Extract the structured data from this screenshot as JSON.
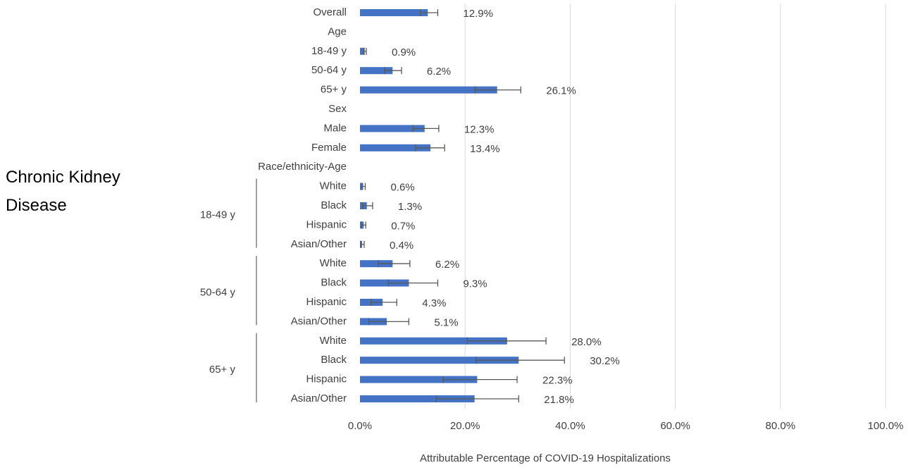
{
  "chart_data": {
    "type": "bar",
    "orientation": "horizontal",
    "title": "Chronic Kidney Disease",
    "x_label": "Attributable Percentage of COVID-19 Hospitalizations",
    "categories": [
      "Overall",
      "Age",
      "18-49 y",
      "50-64 y",
      "65+ y",
      "Sex",
      "Male",
      "Female",
      "Race/ethnicity-Age",
      "White",
      "Black",
      "Hispanic",
      "Asian/Other",
      "White",
      "Black",
      "Hispanic",
      "Asian/Other",
      "White",
      "Black",
      "Hispanic",
      "Asian/Other"
    ],
    "groups": [
      "18-49 y",
      "50-64 y",
      "65+ y"
    ],
    "series": [
      {
        "color": "#4472c4",
        "values": [
          12.9,
          null,
          0.9,
          6.2,
          26.1,
          null,
          12.3,
          13.4,
          null,
          0.6,
          1.3,
          0.7,
          0.4,
          6.2,
          9.3,
          4.3,
          5.1,
          28.0,
          30.2,
          22.3,
          21.8
        ],
        "value_labels": [
          "12.9%",
          null,
          "0.9%",
          "6.2%",
          "26.1%",
          null,
          "12.3%",
          "13.4%",
          null,
          "0.6%",
          "1.3%",
          "0.7%",
          "0.4%",
          "6.2%",
          "9.3%",
          "4.3%",
          "5.1%",
          "28.0%",
          "30.2%",
          "22.3%",
          "21.8%"
        ],
        "lower": [
          11.5,
          null,
          0.7,
          4.7,
          21.9,
          null,
          10.1,
          10.6,
          null,
          0.3,
          0.5,
          0.3,
          0.1,
          3.5,
          5.4,
          2.1,
          1.7,
          20.4,
          22.1,
          15.8,
          14.5
        ],
        "upper": [
          14.8,
          null,
          1.2,
          7.9,
          30.6,
          null,
          15.0,
          16.1,
          null,
          1.0,
          2.4,
          1.1,
          0.8,
          9.5,
          14.8,
          7.0,
          9.3,
          35.4,
          38.9,
          29.9,
          30.2
        ]
      }
    ],
    "error_color": "#595959",
    "xlim": [
      0,
      100
    ],
    "xticks": [
      {
        "value": 0,
        "label": "0.0%"
      },
      {
        "value": 20,
        "label": "20.0%"
      },
      {
        "value": 40,
        "label": "40.0%"
      },
      {
        "value": 60,
        "label": "60.0%"
      },
      {
        "value": 80,
        "label": "80.0%"
      },
      {
        "value": 100,
        "label": "100.0%"
      }
    ],
    "grid": true
  }
}
